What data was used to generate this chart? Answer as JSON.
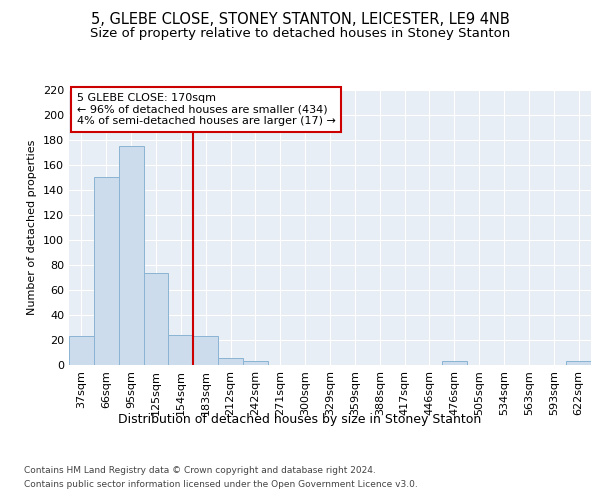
{
  "title1": "5, GLEBE CLOSE, STONEY STANTON, LEICESTER, LE9 4NB",
  "title2": "Size of property relative to detached houses in Stoney Stanton",
  "xlabel": "Distribution of detached houses by size in Stoney Stanton",
  "ylabel": "Number of detached properties",
  "bar_labels": [
    "37sqm",
    "66sqm",
    "95sqm",
    "125sqm",
    "154sqm",
    "183sqm",
    "212sqm",
    "242sqm",
    "271sqm",
    "300sqm",
    "329sqm",
    "359sqm",
    "388sqm",
    "417sqm",
    "446sqm",
    "476sqm",
    "505sqm",
    "534sqm",
    "563sqm",
    "593sqm",
    "622sqm"
  ],
  "bar_values": [
    23,
    150,
    175,
    74,
    24,
    23,
    6,
    3,
    0,
    0,
    0,
    0,
    0,
    0,
    0,
    3,
    0,
    0,
    0,
    0,
    3
  ],
  "bar_color": "#ccdcec",
  "bar_edge_color": "#8ab4d4",
  "reference_line_x": 4.5,
  "annotation_line1": "5 GLEBE CLOSE: 170sqm",
  "annotation_line2": "← 96% of detached houses are smaller (434)",
  "annotation_line3": "4% of semi-detached houses are larger (17) →",
  "vline_color": "#cc0000",
  "annotation_box_color": "#ffffff",
  "annotation_box_edge": "#cc0000",
  "ylim": [
    0,
    220
  ],
  "yticks": [
    0,
    20,
    40,
    60,
    80,
    100,
    120,
    140,
    160,
    180,
    200,
    220
  ],
  "background_color": "#e8eef5",
  "footer1": "Contains HM Land Registry data © Crown copyright and database right 2024.",
  "footer2": "Contains public sector information licensed under the Open Government Licence v3.0.",
  "title1_fontsize": 10.5,
  "title2_fontsize": 9.5,
  "xlabel_fontsize": 9,
  "ylabel_fontsize": 8,
  "tick_fontsize": 8,
  "footer_fontsize": 6.5,
  "annot_fontsize": 8
}
